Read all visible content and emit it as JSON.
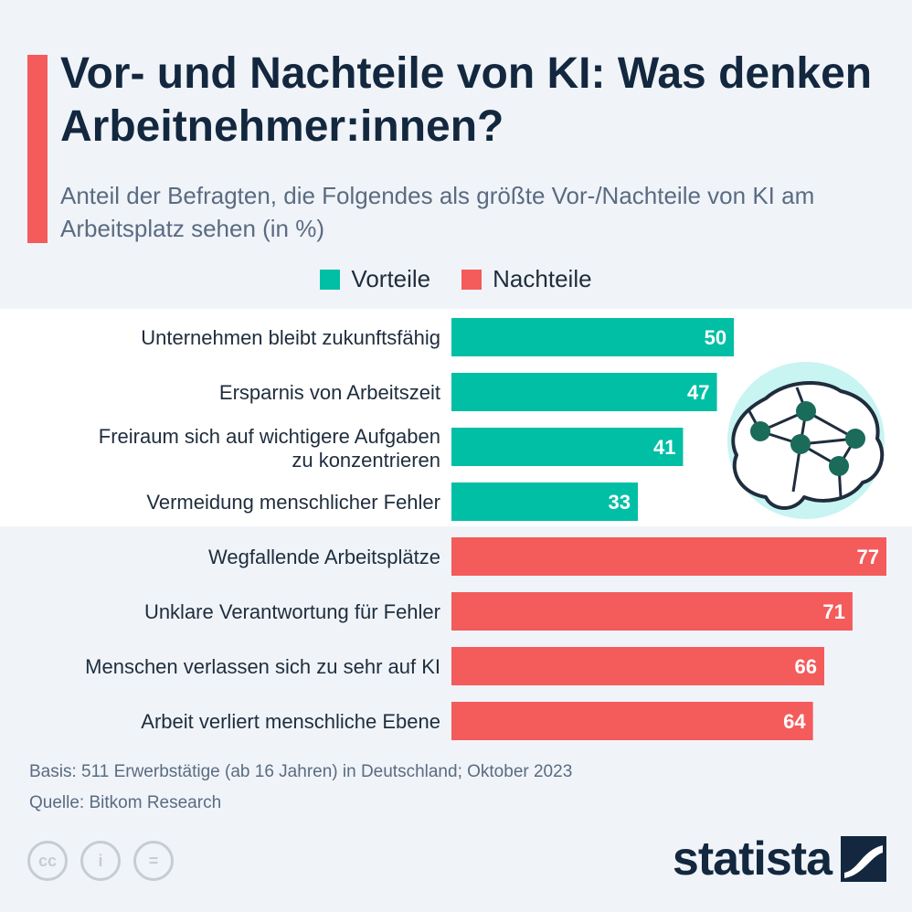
{
  "header": {
    "title": "Vor- und Nachteile von KI: Was denken Arbeitnehmer:innen?",
    "subtitle": "Anteil der Befragten, die Folgendes als größte Vor-/Nachteile von KI am Arbeitsplatz sehen (in %)"
  },
  "legend": {
    "items": [
      {
        "label": "Vorteile",
        "color": "#00bfa5"
      },
      {
        "label": "Nachteile",
        "color": "#f45b5b"
      }
    ]
  },
  "chart_data": {
    "type": "bar",
    "orientation": "horizontal",
    "categories": [
      "Unternehmen bleibt zukunftsfähig",
      "Ersparnis von Arbeitszeit",
      "Freiraum sich auf wichtigere Aufgaben zu konzentrieren",
      "Vermeidung menschlicher Fehler",
      "Wegfallende Arbeitsplätze",
      "Unklare Verantwortung für Fehler",
      "Menschen verlassen sich zu sehr auf KI",
      "Arbeit verliert menschliche Ebene"
    ],
    "values": [
      50,
      47,
      41,
      33,
      77,
      71,
      66,
      64
    ],
    "groups": [
      "Vorteile",
      "Vorteile",
      "Vorteile",
      "Vorteile",
      "Nachteile",
      "Nachteile",
      "Nachteile",
      "Nachteile"
    ],
    "colors": {
      "Vorteile": "#00bfa5",
      "Nachteile": "#f45b5b"
    },
    "xlim": [
      0,
      77
    ],
    "grid": false,
    "legend_position": "top-center",
    "data_labels": true
  },
  "footer": {
    "basis": "Basis: 511 Erwerbstätige (ab 16 Jahren) in Deutschland; Oktober 2023",
    "source": "Quelle: Bitkom Research",
    "brand": "statista",
    "license_icons": [
      {
        "name": "cc-icon",
        "glyph": "cc"
      },
      {
        "name": "attribution-icon",
        "glyph": "i"
      },
      {
        "name": "no-derivatives-icon",
        "glyph": "="
      }
    ]
  },
  "illustration": {
    "name": "brain-network-icon",
    "node_color": "#1a6b5a",
    "bg_color": "#c8f4f2"
  }
}
